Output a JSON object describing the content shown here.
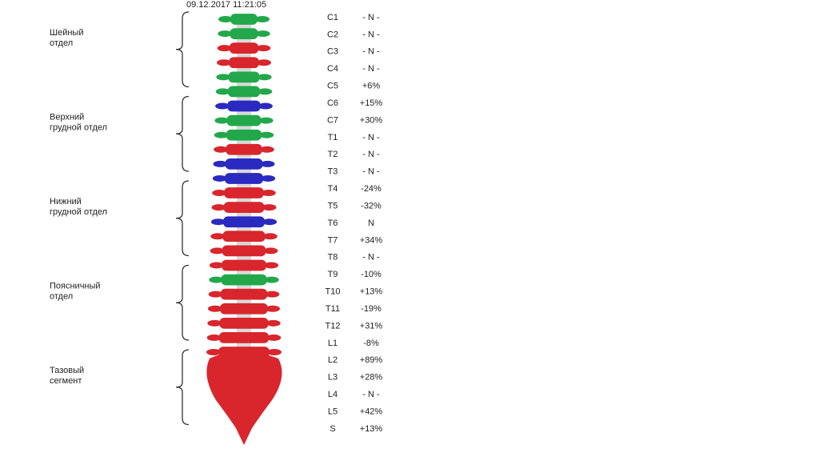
{
  "timestamp": "09.12.2017  11:21:05",
  "sections": [
    {
      "lines": [
        "Шейный",
        "отдел"
      ]
    },
    {
      "lines": [
        "Верхний",
        "грудной отдел"
      ]
    },
    {
      "lines": [
        "Нижний",
        "грудной отдел"
      ]
    },
    {
      "lines": [
        "Поясничный",
        "отдел"
      ]
    },
    {
      "lines": [
        "Тазовый",
        "сегмент"
      ]
    }
  ],
  "rows": [
    {
      "label": "C1",
      "value": "- N -",
      "color": "#22a84a"
    },
    {
      "label": "C2",
      "value": "- N -",
      "color": "#22a84a"
    },
    {
      "label": "C3",
      "value": "- N -",
      "color": "#d8262c"
    },
    {
      "label": "C4",
      "value": "- N -",
      "color": "#d8262c"
    },
    {
      "label": "C5",
      "value": "+6%",
      "color": "#22a84a"
    },
    {
      "label": "C6",
      "value": "+15%",
      "color": "#22a84a"
    },
    {
      "label": "C7",
      "value": "+30%",
      "color": "#2a2ac0"
    },
    {
      "label": "T1",
      "value": "- N -",
      "color": "#22a84a"
    },
    {
      "label": "T2",
      "value": "- N -",
      "color": "#22a84a"
    },
    {
      "label": "T3",
      "value": "- N -",
      "color": "#d8262c"
    },
    {
      "label": "T4",
      "value": "-24%",
      "color": "#2a2ac0"
    },
    {
      "label": "T5",
      "value": "-32%",
      "color": "#2a2ac0"
    },
    {
      "label": "T6",
      "value": "N",
      "color": "#d8262c"
    },
    {
      "label": "T7",
      "value": "+34%",
      "color": "#d8262c"
    },
    {
      "label": "T8",
      "value": "- N -",
      "color": "#2a2ac0"
    },
    {
      "label": "T9",
      "value": "-10%",
      "color": "#d8262c"
    },
    {
      "label": "T10",
      "value": "+13%",
      "color": "#d8262c"
    },
    {
      "label": "T11",
      "value": "-19%",
      "color": "#d8262c"
    },
    {
      "label": "T12",
      "value": "+31%",
      "color": "#22a84a"
    },
    {
      "label": "L1",
      "value": "-8%",
      "color": "#d8262c"
    },
    {
      "label": "L2",
      "value": "+89%",
      "color": "#d8262c"
    },
    {
      "label": "L3",
      "value": "+28%",
      "color": "#d8262c"
    },
    {
      "label": "L4",
      "value": "- N -",
      "color": "#d8262c"
    },
    {
      "label": "L5",
      "value": "+42%",
      "color": "#d8262c"
    },
    {
      "label": "S",
      "value": "+13%",
      "color": "#d8262c"
    }
  ]
}
